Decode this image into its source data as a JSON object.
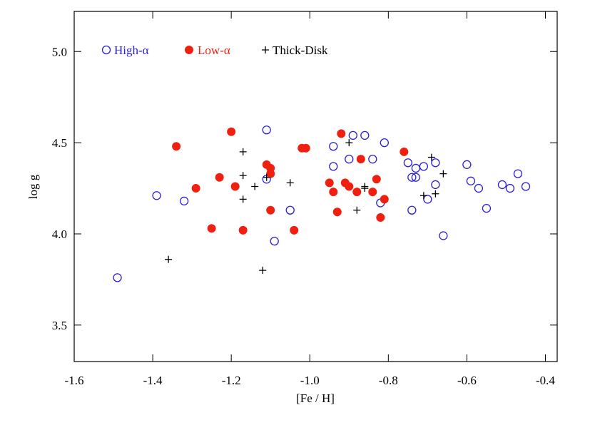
{
  "chart_data": {
    "type": "scatter",
    "x_label": "[Fe / H]",
    "y_label": "log g",
    "xlim": [
      -1.6,
      -0.37
    ],
    "ylim": [
      3.3,
      5.22
    ],
    "xticks": [
      -1.6,
      -1.4,
      -1.2,
      {
        "value": -1.0,
        "label": "-1.0"
      },
      -0.8,
      -0.6,
      -0.4
    ],
    "yticks": [
      3.5,
      {
        "value": 4.0,
        "label": "4.0"
      },
      4.5,
      {
        "value": 5.0,
        "label": "5.0"
      }
    ],
    "legend": "top-left",
    "series": [
      {
        "name": "High-α",
        "color": "#2a1fd8",
        "marker": "open-circle",
        "x": [
          -1.49,
          -1.39,
          -1.32,
          -1.11,
          -1.11,
          -1.09,
          -1.05,
          -0.94,
          -0.94,
          -0.9,
          -0.89,
          -0.86,
          -0.84,
          -0.82,
          -0.81,
          -0.75,
          -0.74,
          -0.73,
          -0.73,
          -0.71,
          -0.74,
          -0.7,
          -0.68,
          -0.68,
          -0.66,
          -0.6,
          -0.59,
          -0.57,
          -0.55,
          -0.51,
          -0.49,
          -0.47,
          -0.45
        ],
        "y": [
          3.76,
          4.21,
          4.18,
          4.57,
          4.3,
          3.96,
          4.13,
          4.48,
          4.37,
          4.41,
          4.54,
          4.54,
          4.41,
          4.17,
          4.5,
          4.39,
          4.31,
          4.36,
          4.31,
          4.37,
          4.13,
          4.19,
          4.39,
          4.27,
          3.99,
          4.38,
          4.29,
          4.25,
          4.14,
          4.27,
          4.25,
          4.33,
          4.26
        ]
      },
      {
        "name": "Low-α",
        "color": "#f02010",
        "marker": "filled-circle",
        "x": [
          -1.34,
          -1.29,
          -1.25,
          -1.23,
          -1.2,
          -1.19,
          -1.17,
          -1.11,
          -1.1,
          -1.1,
          -1.1,
          -1.04,
          -1.02,
          -1.01,
          -0.95,
          -0.94,
          -0.93,
          -0.92,
          -0.91,
          -0.9,
          -0.88,
          -0.87,
          -0.84,
          -0.83,
          -0.82,
          -0.81,
          -0.76
        ],
        "y": [
          4.48,
          4.25,
          4.03,
          4.31,
          4.56,
          4.26,
          4.02,
          4.38,
          4.36,
          4.33,
          4.13,
          4.02,
          4.47,
          4.47,
          4.28,
          4.23,
          4.12,
          4.55,
          4.28,
          4.26,
          4.23,
          4.41,
          4.23,
          4.3,
          4.09,
          4.19,
          4.45
        ]
      },
      {
        "name": "Thick-Disk",
        "color": "#000000",
        "marker": "plus",
        "x": [
          -1.36,
          -1.17,
          -1.17,
          -1.17,
          -1.14,
          -1.12,
          -1.11,
          -1.05,
          -0.9,
          -0.88,
          -0.86,
          -0.86,
          -0.69,
          -0.71,
          -0.68,
          -0.66
        ],
        "y": [
          3.86,
          4.45,
          4.32,
          4.19,
          4.26,
          3.8,
          4.31,
          4.28,
          4.5,
          4.13,
          4.25,
          4.26,
          4.42,
          4.21,
          4.22,
          4.33
        ]
      }
    ]
  }
}
